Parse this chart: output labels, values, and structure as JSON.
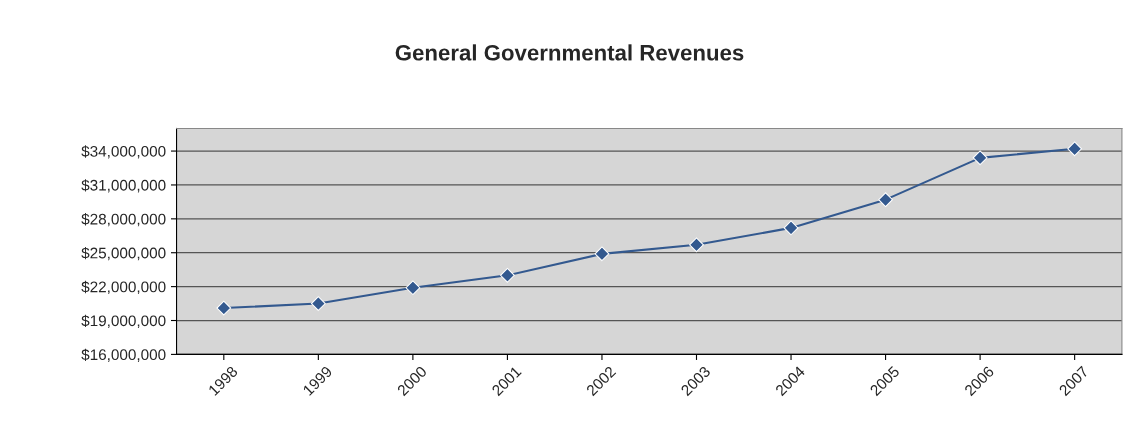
{
  "chart_data": {
    "type": "line",
    "title": "General Governmental Revenues",
    "categories": [
      "1998",
      "1999",
      "2000",
      "2001",
      "2002",
      "2003",
      "2004",
      "2005",
      "2006",
      "2007"
    ],
    "series": [
      {
        "color": "#33598f",
        "values": [
          20100000,
          20500000,
          21900000,
          23000000,
          24900000,
          25700000,
          27200000,
          29700000,
          33400000,
          34200000
        ]
      }
    ],
    "ylim": [
      16000000,
      36000000
    ],
    "yticks": [
      {
        "value": 16000000,
        "label": "$16,000,000"
      },
      {
        "value": 19000000,
        "label": "$19,000,000"
      },
      {
        "value": 22000000,
        "label": "$22,000,000"
      },
      {
        "value": 25000000,
        "label": "$25,000,000"
      },
      {
        "value": 28000000,
        "label": "$28,000,000"
      },
      {
        "value": 31000000,
        "label": "$31,000,000"
      },
      {
        "value": 34000000,
        "label": "$34,000,000"
      }
    ],
    "grid": "y",
    "marker": "diamond",
    "line_style": "solid"
  }
}
